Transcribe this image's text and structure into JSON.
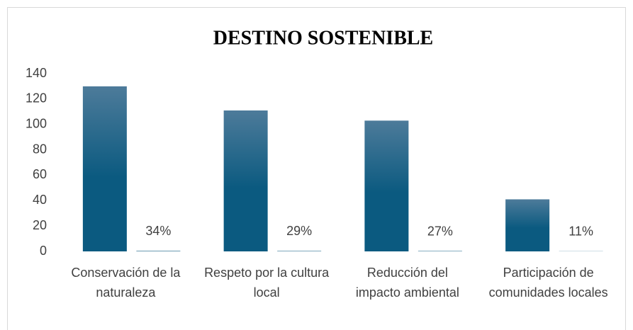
{
  "chart_data": {
    "type": "bar",
    "title": "DESTINO SOSTENIBLE",
    "categories": [
      "Conservación de la naturaleza",
      "Respeto por la cultura local",
      "Reducción del impacto ambiental",
      "Participación de comunidades locales"
    ],
    "series": [
      {
        "color": "#0b5a80",
        "values": [
          130,
          111,
          103,
          41
        ]
      },
      {
        "color": "#0b5a80",
        "values": [
          0.34,
          0.29,
          0.27,
          0.11
        ],
        "value_labels": [
          "34%",
          "29%",
          "27%",
          "11%"
        ]
      }
    ],
    "ylim": [
      0,
      140
    ],
    "yticks": [
      0,
      20,
      40,
      60,
      80,
      100,
      120,
      140
    ],
    "grid": false
  }
}
